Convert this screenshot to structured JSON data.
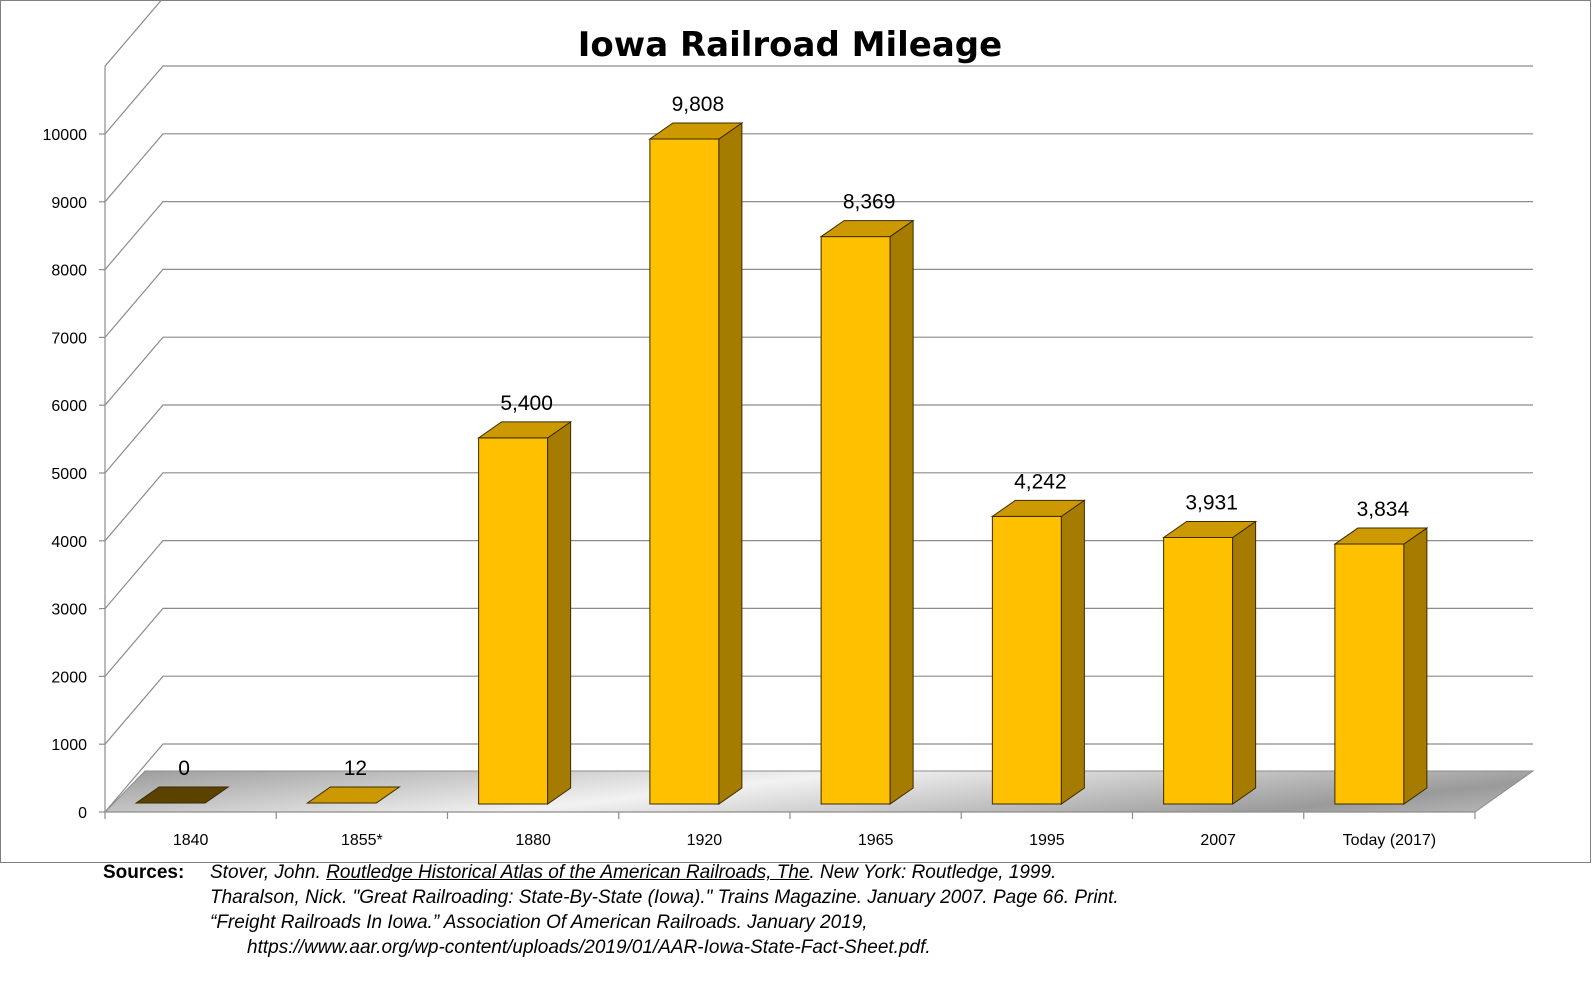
{
  "chart_data": {
    "type": "bar",
    "title": "Iowa Railroad Mileage",
    "categories": [
      "1840",
      "1855*",
      "1880",
      "1920",
      "1965",
      "1995",
      "2007",
      "Today  (2017)"
    ],
    "values": [
      0,
      12,
      5400,
      9808,
      8369,
      4242,
      3931,
      3834
    ],
    "value_labels": [
      "0",
      "12",
      "5,400",
      "9,808",
      "8,369",
      "4,242",
      "3,931",
      "3,834"
    ],
    "yticks": [
      "0",
      "1000",
      "2000",
      "3000",
      "4000",
      "5000",
      "6000",
      "7000",
      "8000",
      "9000",
      "10000"
    ],
    "ylim": [
      0,
      11000
    ],
    "xlabel": "",
    "ylabel": "",
    "grid": true,
    "style": "3d-column",
    "colors": {
      "front": "#FFC000",
      "side": "#A67C00",
      "top": "#CC9900",
      "outline": "#3a2a00",
      "zero_bar": "#5C4200"
    }
  },
  "sources": {
    "heading": "Sources:",
    "entries": [
      {
        "pre": "Stover, John. ",
        "title": "Routledge Historical Atlas of the American Railroads, The",
        "post": ". New York: Routledge, 1999."
      },
      {
        "pre": "Tharalson, Nick. \"Great Railroading: State-By-State (Iowa).\" Trains Magazine. January 2007. Page 66. Print.",
        "title": "",
        "post": ""
      },
      {
        "pre": "“Freight Railroads In Iowa.” Association Of American Railroads. January 2019,",
        "title": "",
        "post": ""
      },
      {
        "pre": "https://www.aar.org/wp-content/uploads/2019/01/AAR-Iowa-State-Fact-Sheet.pdf.",
        "title": "",
        "post": ""
      }
    ]
  }
}
